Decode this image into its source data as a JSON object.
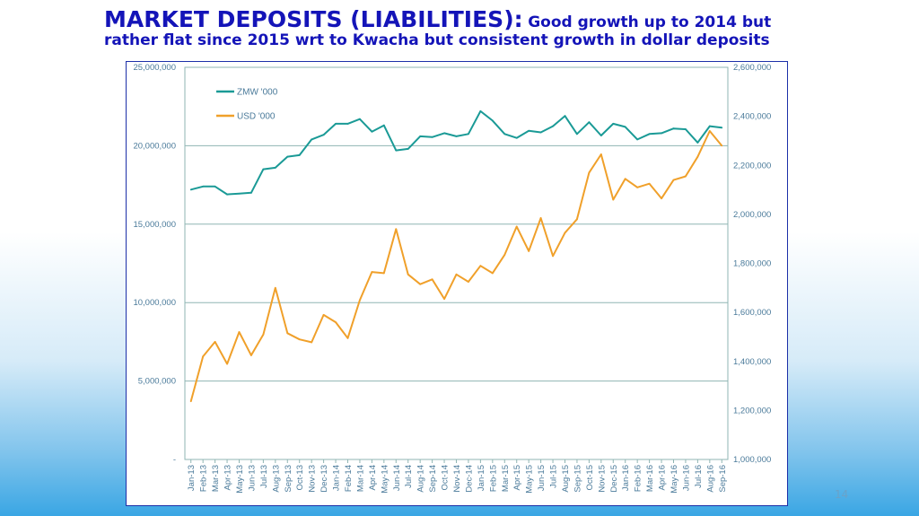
{
  "title": {
    "main": "MARKET DEPOSITS (LIABILITIES):",
    "sub_part1": "Good growth up to 2014 but",
    "sub_part2": "rather flat since 2015 wrt to Kwacha but consistent growth in dollar deposits"
  },
  "page_number": "14",
  "colors": {
    "title": "#1414b8",
    "zmw": "#1a9a96",
    "usd": "#f0a02a",
    "grid": "#8fb5b3",
    "axis_text": "#4a7a9a"
  },
  "chart_data": {
    "type": "line",
    "categories": [
      "Jan-13",
      "Feb-13",
      "Mar-13",
      "Apr-13",
      "May-13",
      "Jun-13",
      "Jul-13",
      "Aug-13",
      "Sep-13",
      "Oct-13",
      "Nov-13",
      "Dec-13",
      "Jan-14",
      "Feb-14",
      "Mar-14",
      "Apr-14",
      "May-14",
      "Jun-14",
      "Jul-14",
      "Aug-14",
      "Sep-14",
      "Oct-14",
      "Nov-14",
      "Dec-14",
      "Jan-15",
      "Feb-15",
      "Mar-15",
      "Apr-15",
      "May-15",
      "Jun-15",
      "Jul-15",
      "Aug-15",
      "Sep-15",
      "Oct-15",
      "Nov-15",
      "Dec-15",
      "Jan-16",
      "Feb-16",
      "Mar-16",
      "Apr-16",
      "May-16",
      "Jun-16",
      "Jul-16",
      "Aug-16",
      "Sep-16"
    ],
    "series": [
      {
        "name": "ZMW '000",
        "axis": "left",
        "color": "#1a9a96",
        "values": [
          17200000,
          17400000,
          17400000,
          16900000,
          16950000,
          17000000,
          18500000,
          18600000,
          19300000,
          19400000,
          20400000,
          20700000,
          21400000,
          21400000,
          21700000,
          20900000,
          21300000,
          19700000,
          19800000,
          20600000,
          20550000,
          20800000,
          20600000,
          20750000,
          22200000,
          21600000,
          20750000,
          20500000,
          20950000,
          20850000,
          21250000,
          21900000,
          20750000,
          21500000,
          20650000,
          21400000,
          21200000,
          20400000,
          20750000,
          20800000,
          21100000,
          21050000,
          20200000,
          21250000,
          21150000
        ]
      },
      {
        "name": "USD '000",
        "axis": "right",
        "color": "#f0a02a",
        "values": [
          1237000,
          1420000,
          1480000,
          1390000,
          1520000,
          1425000,
          1510000,
          1700000,
          1515000,
          1490000,
          1478000,
          1590000,
          1560000,
          1495000,
          1650000,
          1765000,
          1760000,
          1940000,
          1755000,
          1715000,
          1735000,
          1655000,
          1755000,
          1725000,
          1790000,
          1760000,
          1835000,
          1950000,
          1850000,
          1985000,
          1830000,
          1925000,
          1980000,
          2170000,
          2245000,
          2060000,
          2145000,
          2110000,
          2125000,
          2065000,
          2140000,
          2155000,
          2235000,
          2340000,
          2280000
        ]
      }
    ],
    "y_left": {
      "min": 0,
      "max": 25000000,
      "ticks": [
        0,
        5000000,
        10000000,
        15000000,
        20000000,
        25000000
      ],
      "tick_labels": [
        "-",
        "5,000,000",
        "10,000,000",
        "15,000,000",
        "20,000,000",
        "25,000,000"
      ]
    },
    "y_right": {
      "min": 1000000,
      "max": 2600000,
      "ticks": [
        1000000,
        1200000,
        1400000,
        1600000,
        1800000,
        2000000,
        2200000,
        2400000,
        2600000
      ],
      "tick_labels": [
        "1,000,000",
        "1,200,000",
        "1,400,000",
        "1,600,000",
        "1,800,000",
        "2,000,000",
        "2,200,000",
        "2,400,000",
        "2,600,000"
      ]
    },
    "grid": true,
    "legend_position": "top-left"
  }
}
